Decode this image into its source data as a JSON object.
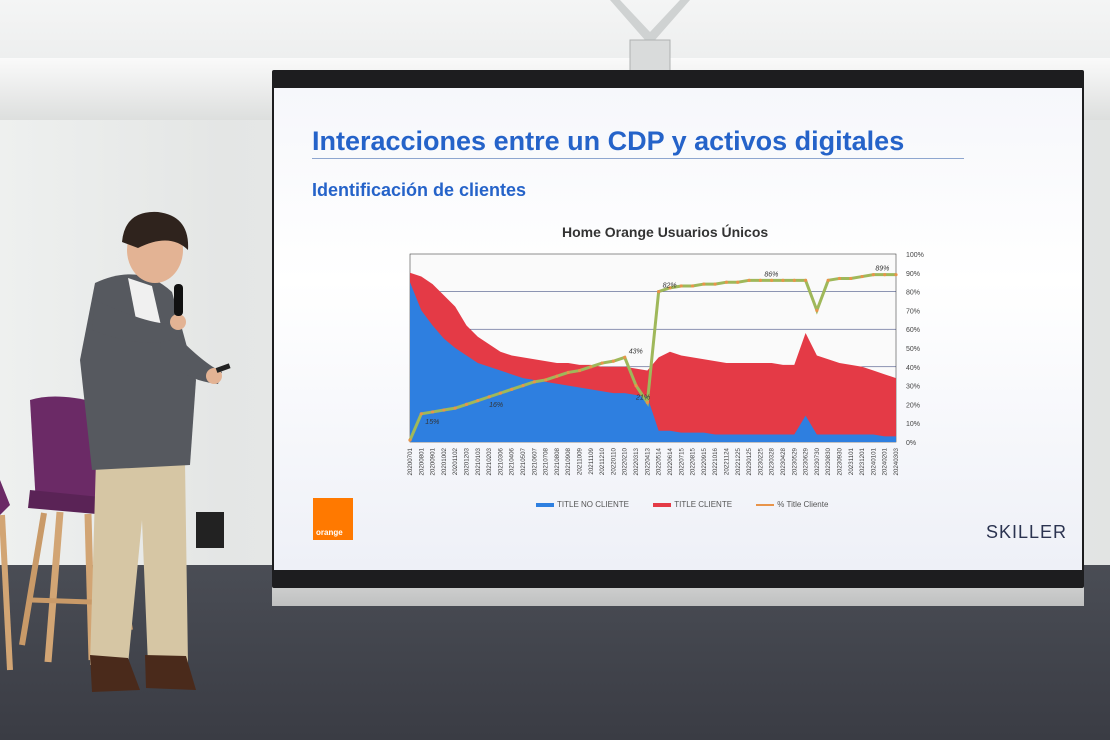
{
  "slide": {
    "title": "Interacciones entre un CDP y activos digitales",
    "subtitle": "Identificación de clientes",
    "orange_logo_text": "orange",
    "skiller_logo_text": "SKILLER"
  },
  "colors": {
    "title_blue": "#2563c9",
    "no_cliente": "#2e7fe0",
    "cliente": "#e43a46",
    "pct_line": "#9fb85a",
    "orange_brand": "#ff7900"
  },
  "chart_data": {
    "type": "area",
    "title": "Home Orange Usuarios Únicos",
    "x_tick_labels": [
      "20200701",
      "20200801",
      "20200901",
      "20201002",
      "20201102",
      "20201203",
      "20210103",
      "20210203",
      "20210306",
      "20210406",
      "20210507",
      "20210607",
      "20210708",
      "20210808",
      "20210908",
      "20211009",
      "20211109",
      "20211210",
      "20220110",
      "20220210",
      "20220313",
      "20220413",
      "20220514",
      "20220614",
      "20220715",
      "20220815",
      "20220915",
      "20221016",
      "20221124",
      "20221225",
      "20230125",
      "20230225",
      "20230328",
      "20230428",
      "20230529",
      "20230629",
      "20230730",
      "20230830",
      "20230930",
      "20231101",
      "20231201",
      "20240101",
      "20240201",
      "20240303"
    ],
    "right_axis_ticks": [
      "100%",
      "90%",
      "80%",
      "70%",
      "60%",
      "50%",
      "40%",
      "30%",
      "20%",
      "10%",
      "0%"
    ],
    "ylim_right": [
      0,
      100
    ],
    "series": [
      {
        "name": "TITLE NO CLIENTE",
        "kind": "area",
        "values": [
          85,
          70,
          62,
          55,
          50,
          46,
          42,
          40,
          38,
          36,
          34,
          33,
          32,
          31,
          30,
          29,
          28,
          27,
          26,
          26,
          25,
          24,
          6,
          6,
          5,
          5,
          5,
          4,
          4,
          4,
          4,
          4,
          4,
          4,
          4,
          14,
          4,
          4,
          4,
          4,
          4,
          4,
          3,
          3
        ]
      },
      {
        "name": "TITLE CLIENTE",
        "kind": "area",
        "values": [
          90,
          88,
          84,
          78,
          72,
          62,
          56,
          52,
          48,
          46,
          45,
          44,
          43,
          42,
          42,
          41,
          41,
          40,
          40,
          40,
          39,
          38,
          45,
          48,
          46,
          45,
          44,
          43,
          42,
          42,
          42,
          42,
          42,
          41,
          41,
          58,
          46,
          44,
          42,
          41,
          40,
          38,
          36,
          34
        ]
      },
      {
        "name": "% Title Cliente",
        "kind": "line",
        "values": [
          1,
          15,
          16,
          17,
          18,
          20,
          22,
          24,
          26,
          28,
          30,
          32,
          33,
          35,
          37,
          38,
          40,
          42,
          43,
          45,
          30,
          21,
          80,
          82,
          83,
          83,
          84,
          84,
          85,
          85,
          86,
          86,
          86,
          86,
          86,
          86,
          70,
          86,
          87,
          87,
          88,
          89,
          89,
          89
        ]
      }
    ],
    "annotations": [
      "15%",
      "16%",
      "43%",
      "21%",
      "82%",
      "86%",
      "89%"
    ],
    "legend_position": "bottom"
  }
}
